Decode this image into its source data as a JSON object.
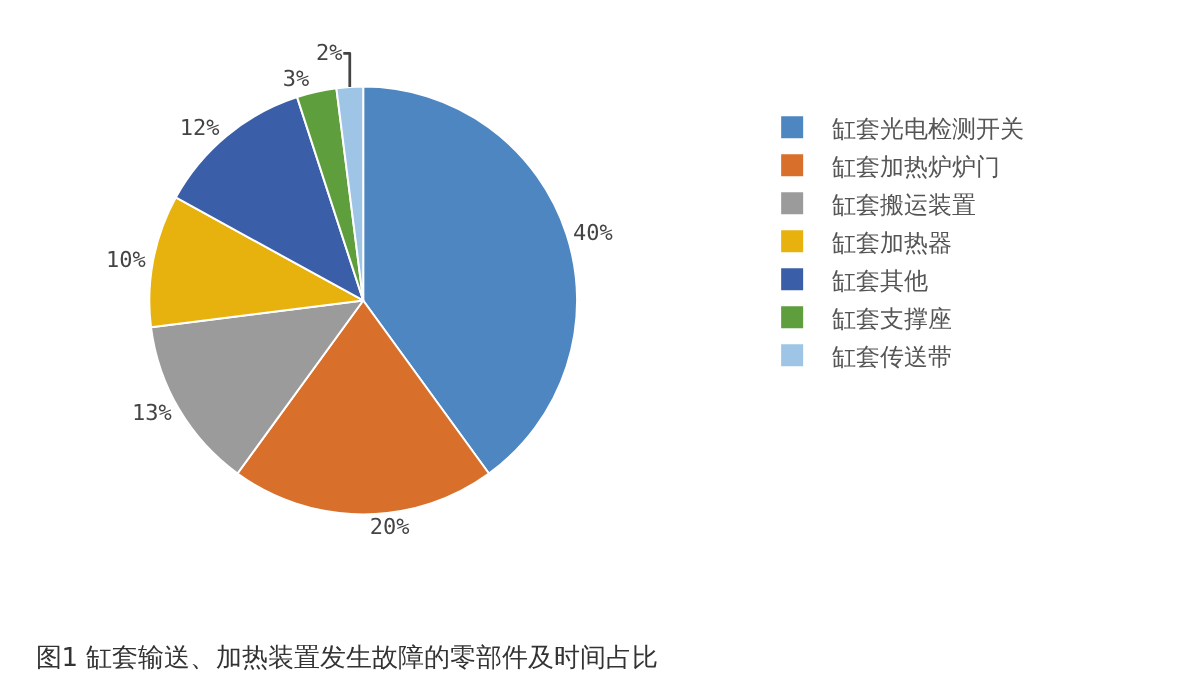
{
  "chart_data": {
    "type": "pie",
    "title": "图1 缸套输送、加热装置发生故障的零部件及时间占比",
    "categories": [
      "缸套光电检测开关",
      "缸套加热炉炉门",
      "缸套搬运装置",
      "缸套加热器",
      "缸套其他",
      "缸套支撑座",
      "缸套传送带"
    ],
    "values": [
      40,
      20,
      13,
      10,
      12,
      3,
      2
    ],
    "colors": [
      "#4e86c2",
      "#d8702b",
      "#9b9b9b",
      "#e8b20e",
      "#3b5ea9",
      "#5e9e3c",
      "#9ec4e6"
    ],
    "value_labels": [
      "40%",
      "20%",
      "13%",
      "10%",
      "12%",
      "3%",
      "2%"
    ],
    "legend": "right"
  }
}
